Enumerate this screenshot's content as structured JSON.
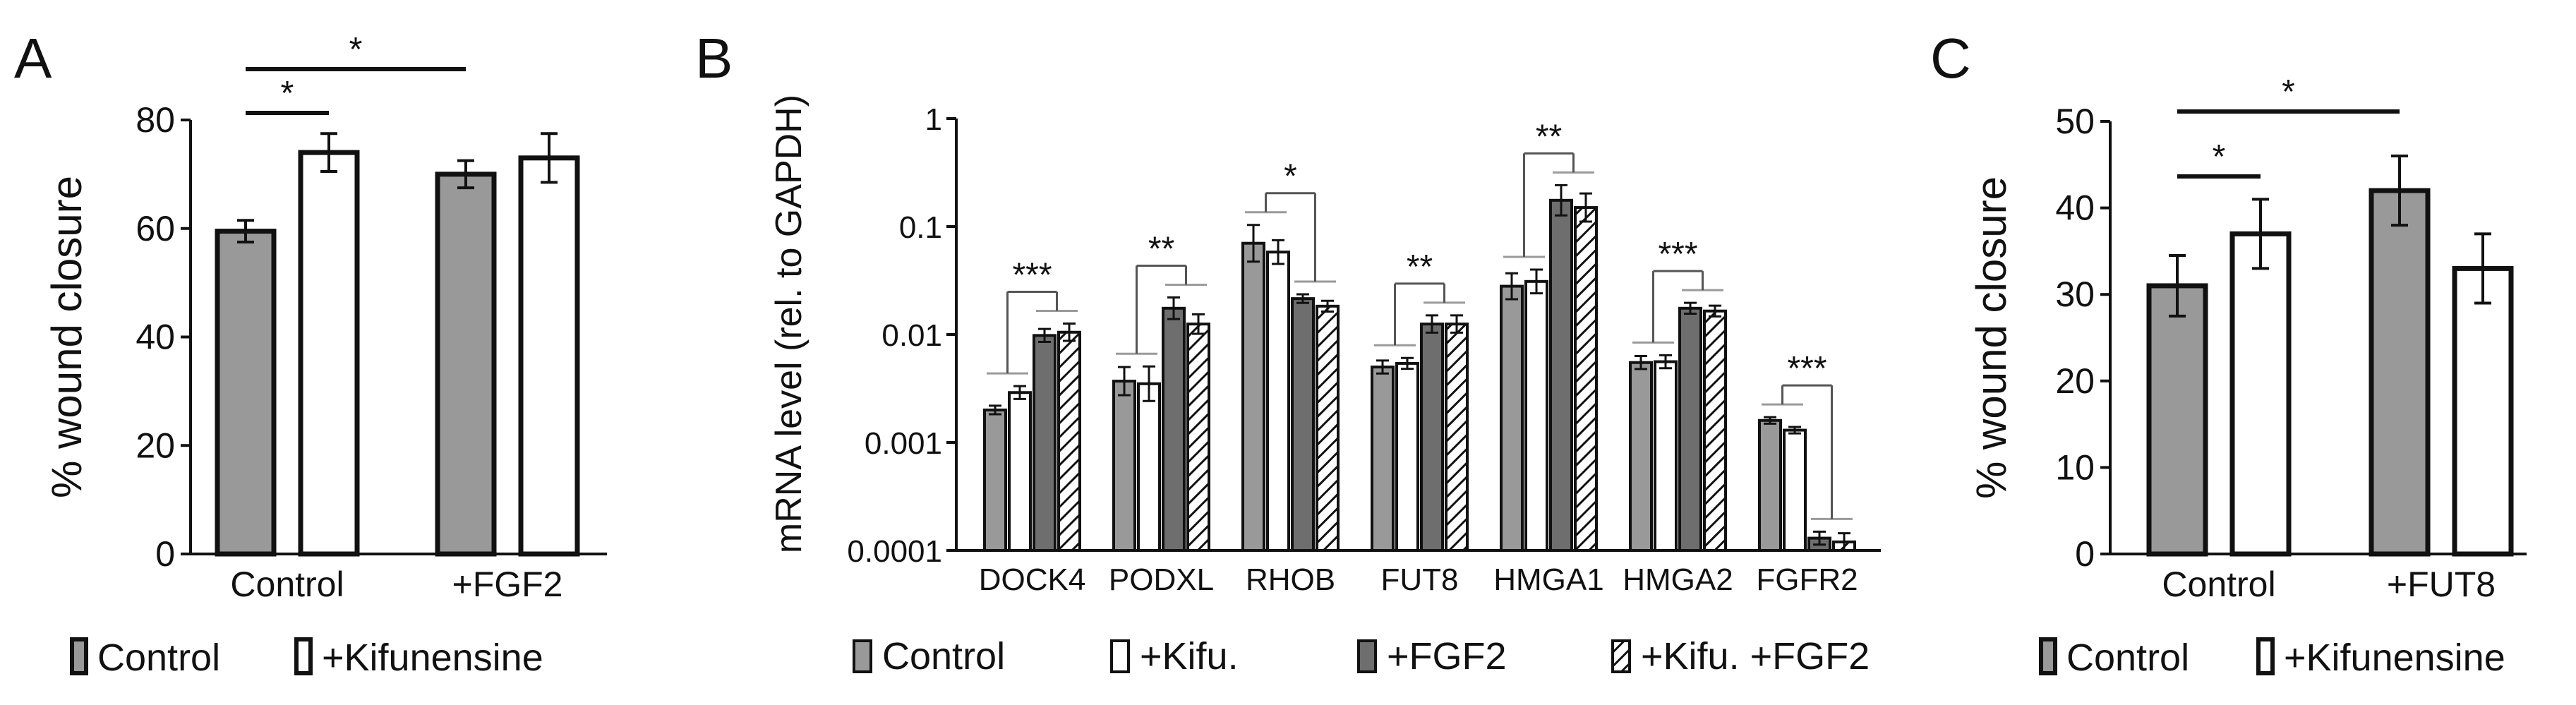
{
  "colors": {
    "control": "#999999",
    "fgf2": "#6e6e6e",
    "white": "#ffffff",
    "ink": "#111111"
  },
  "chart_data": [
    {
      "panel": "A",
      "type": "bar",
      "ylabel": "% wound closure",
      "ylim": [
        0,
        80
      ],
      "yticks": [
        "0",
        "20",
        "40",
        "60",
        "80"
      ],
      "groups": [
        "Control",
        "+FGF2"
      ],
      "series": [
        {
          "name": "Control",
          "values": [
            59.5,
            70
          ],
          "errors": [
            2,
            2.5
          ]
        },
        {
          "name": "+Kifunensine",
          "values": [
            74,
            73
          ],
          "errors": [
            3.5,
            4.5
          ]
        }
      ],
      "significance": [
        {
          "label": "*",
          "between": "Control/Control vs Control/+Kifunensine"
        },
        {
          "label": "*",
          "between": "Control/Control vs +FGF2/Control"
        }
      ],
      "legend": [
        "Control",
        "+Kifunensine"
      ]
    },
    {
      "panel": "B",
      "type": "bar",
      "yscale": "log",
      "ylabel": "mRNA level (rel. to GAPDH)",
      "ylim": [
        0.0001,
        1
      ],
      "yticks": [
        "0.0001",
        "0.001",
        "0.01",
        "0.1",
        "1"
      ],
      "categories": [
        "DOCK4",
        "PODXL",
        "RHOB",
        "FUT8",
        "HMGA1",
        "HMGA2",
        "FGFR2"
      ],
      "series": [
        {
          "name": "Control",
          "values": [
            0.002,
            0.0037,
            0.07,
            0.005,
            0.028,
            0.0055,
            0.0016
          ],
          "errors_log": [
            0.04,
            0.13,
            0.17,
            0.06,
            0.12,
            0.06,
            0.03
          ]
        },
        {
          "name": "+Kifu.",
          "values": [
            0.0029,
            0.0035,
            0.058,
            0.0054,
            0.031,
            0.0056,
            0.0013
          ],
          "errors_log": [
            0.06,
            0.16,
            0.11,
            0.05,
            0.11,
            0.06,
            0.03
          ]
        },
        {
          "name": "+FGF2",
          "values": [
            0.0098,
            0.0175,
            0.0215,
            0.0125,
            0.175,
            0.0175,
            0.00013
          ],
          "errors_log": [
            0.06,
            0.1,
            0.04,
            0.08,
            0.14,
            0.05,
            0.06
          ]
        },
        {
          "name": "+Kifu. +FGF2",
          "values": [
            0.0105,
            0.0125,
            0.0183,
            0.0125,
            0.15,
            0.0165,
            0.00012
          ],
          "errors_log": [
            0.08,
            0.09,
            0.05,
            0.08,
            0.13,
            0.05,
            0.08
          ]
        }
      ],
      "significance": [
        "***",
        "**",
        "*",
        "**",
        "**",
        "***",
        "***"
      ],
      "legend": [
        "Control",
        "+Kifu.",
        "+FGF2",
        "+Kifu. +FGF2"
      ]
    },
    {
      "panel": "C",
      "type": "bar",
      "ylabel": "% wound closure",
      "ylim": [
        0,
        50
      ],
      "yticks": [
        "0",
        "10",
        "20",
        "30",
        "40",
        "50"
      ],
      "groups": [
        "Control",
        "+FUT8"
      ],
      "series": [
        {
          "name": "Control",
          "values": [
            31,
            42
          ],
          "errors": [
            3.5,
            4
          ]
        },
        {
          "name": "+Kifunensine",
          "values": [
            37,
            33
          ],
          "errors": [
            4,
            4
          ]
        }
      ],
      "significance": [
        {
          "label": "*",
          "between": "Control/Control vs Control/+Kifunensine"
        },
        {
          "label": "*",
          "between": "Control/Control vs +FUT8/Control"
        }
      ],
      "legend": [
        "Control",
        "+Kifunensine"
      ]
    }
  ]
}
